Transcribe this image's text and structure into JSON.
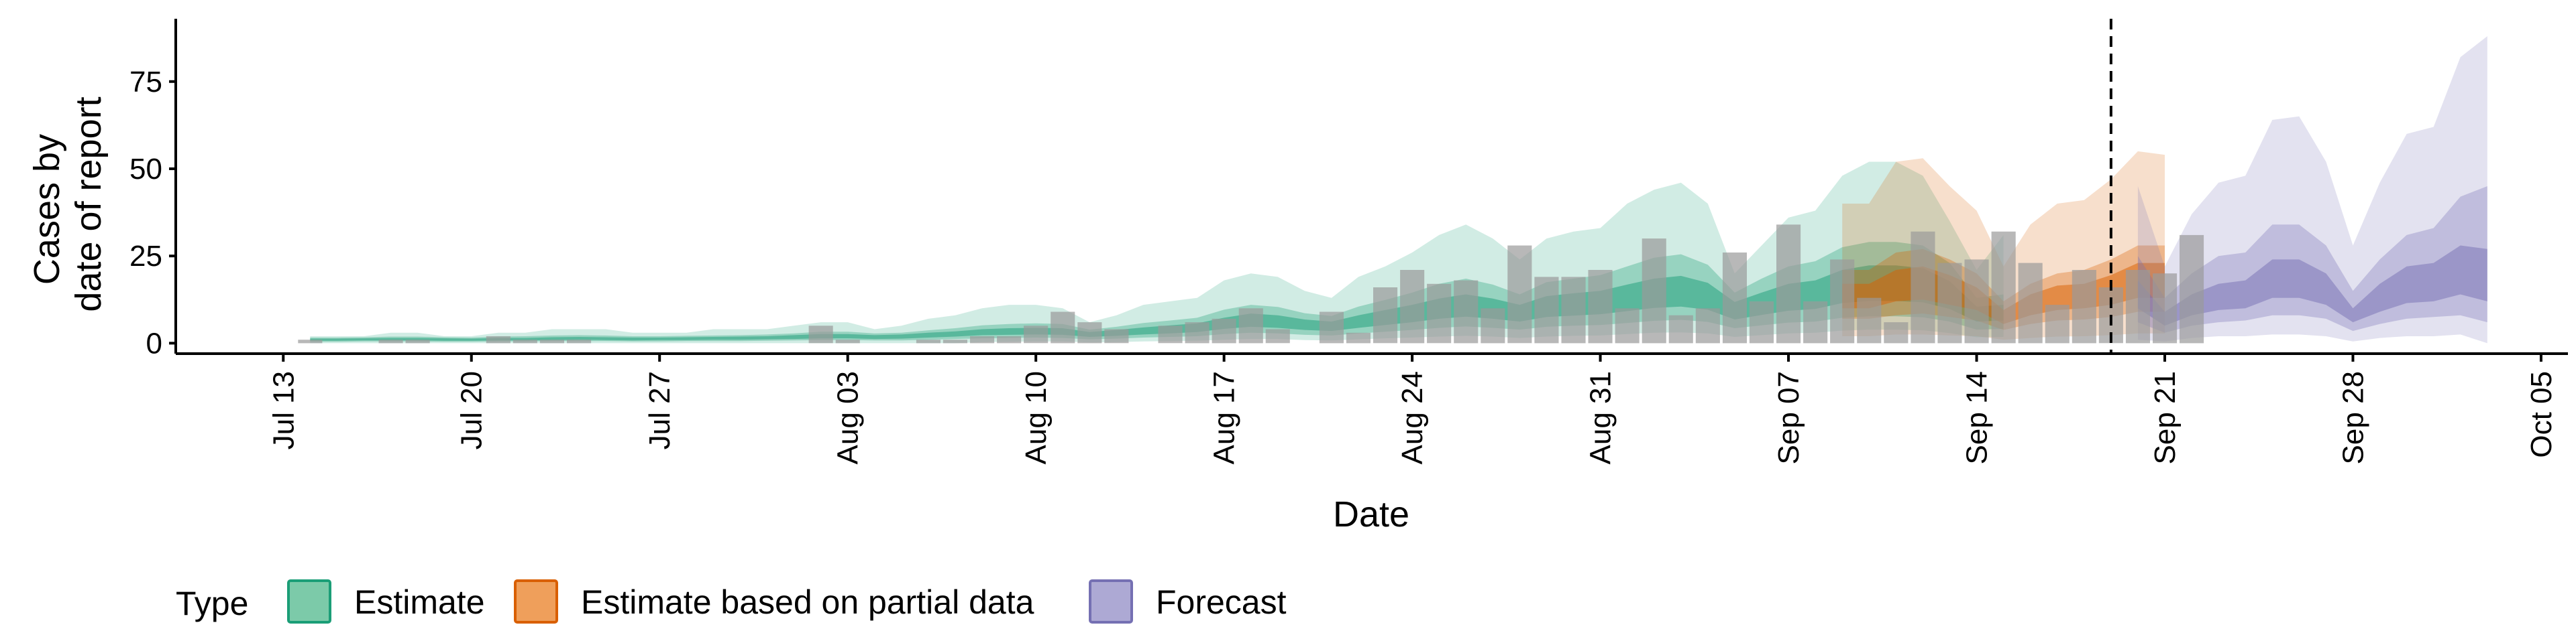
{
  "chart_data": {
    "type": "area",
    "ylabel": [
      "Cases by",
      "date of report"
    ],
    "xlabel": "Date",
    "ylim": [
      -3,
      93
    ],
    "xlim": [
      "2020-07-09",
      "2020-10-06"
    ],
    "y_ticks": [
      0,
      25,
      50,
      75
    ],
    "x_ticks": [
      {
        "date": "2020-07-13",
        "label": "Jul 13"
      },
      {
        "date": "2020-07-20",
        "label": "Jul 20"
      },
      {
        "date": "2020-07-27",
        "label": "Jul 27"
      },
      {
        "date": "2020-08-03",
        "label": "Aug 03"
      },
      {
        "date": "2020-08-10",
        "label": "Aug 10"
      },
      {
        "date": "2020-08-17",
        "label": "Aug 17"
      },
      {
        "date": "2020-08-24",
        "label": "Aug 24"
      },
      {
        "date": "2020-08-31",
        "label": "Aug 31"
      },
      {
        "date": "2020-09-07",
        "label": "Sep 07"
      },
      {
        "date": "2020-09-14",
        "label": "Sep 14"
      },
      {
        "date": "2020-09-21",
        "label": "Sep 21"
      },
      {
        "date": "2020-09-28",
        "label": "Sep 28"
      },
      {
        "date": "2020-10-05",
        "label": "Oct 05"
      }
    ],
    "forecast_date": "2020-09-19",
    "legend": {
      "title": "Type",
      "position": "bottom",
      "entries": [
        {
          "label": "Estimate",
          "fill": "#7ccaa9",
          "stroke": "#1b9e77"
        },
        {
          "label": "Estimate based on partial data",
          "fill": "#ef9f5b",
          "stroke": "#d95f02"
        },
        {
          "label": "Forecast",
          "fill": "#ada9d4",
          "stroke": "#7570b3"
        }
      ]
    },
    "colors": {
      "estimate": "#1b9e77",
      "partial": "#d95f02",
      "forecast": "#7570b3",
      "bars": "#9a9a9a"
    },
    "reported_cases": {
      "start": "2020-07-14",
      "values": [
        1,
        0,
        0,
        1,
        1,
        0,
        0,
        2,
        1,
        1,
        1,
        0,
        0,
        0,
        0,
        0,
        0,
        0,
        0,
        5,
        1,
        0,
        0,
        1,
        1,
        2,
        2,
        5,
        9,
        6,
        4,
        0,
        5,
        6,
        7,
        10,
        4,
        0,
        9,
        3,
        16,
        21,
        17,
        18,
        10,
        28,
        19,
        19,
        21,
        10,
        30,
        8,
        10,
        26,
        12,
        34,
        12,
        24,
        13,
        6,
        32,
        23,
        24,
        32,
        23,
        11,
        21,
        16,
        21,
        20,
        31
      ]
    },
    "series": [
      {
        "name": "Estimate",
        "start": "2020-07-14",
        "upper": [
          2,
          2,
          2,
          3,
          3,
          2,
          2,
          3,
          3,
          4,
          4,
          4,
          3,
          3,
          3,
          4,
          4,
          4,
          5,
          6,
          6,
          4,
          5,
          7,
          8,
          10,
          11,
          11,
          10,
          6,
          8,
          11,
          12,
          13,
          18,
          20,
          19,
          15,
          13,
          19,
          22,
          26,
          31,
          34,
          30,
          24,
          30,
          32,
          33,
          40,
          44,
          46,
          40,
          20,
          28,
          36,
          38,
          48,
          52,
          52,
          48,
          35,
          21,
          31
        ],
        "hi50": [
          1.6,
          1.6,
          1.7,
          1.9,
          1.9,
          1.7,
          1.6,
          1.9,
          2,
          2.2,
          2.3,
          2.2,
          2,
          2,
          2.1,
          2.2,
          2.3,
          2.5,
          2.8,
          3.3,
          3.3,
          2.8,
          3,
          3.7,
          4.3,
          5.1,
          5.5,
          5.7,
          5.5,
          3.9,
          4.7,
          5.8,
          6.5,
          7.3,
          9.6,
          11,
          10.4,
          8.6,
          7.8,
          10.5,
          12.4,
          14.5,
          17,
          18.5,
          16.8,
          14,
          17.5,
          18.5,
          19.5,
          22,
          24.5,
          25.5,
          22.5,
          14.5,
          18.5,
          22,
          23.5,
          27.5,
          29,
          29,
          28,
          23,
          13,
          14
        ],
        "hi20": [
          1.3,
          1.3,
          1.4,
          1.5,
          1.5,
          1.4,
          1.3,
          1.5,
          1.5,
          1.7,
          1.8,
          1.7,
          1.6,
          1.6,
          1.7,
          1.8,
          1.9,
          2,
          2.3,
          2.6,
          2.6,
          2.3,
          2.5,
          3,
          3.4,
          4,
          4.3,
          4.4,
          4.3,
          3.2,
          3.8,
          4.5,
          5.1,
          5.7,
          7.3,
          8.5,
          8,
          6.8,
          6.2,
          8,
          9.5,
          11,
          12.8,
          14,
          12.8,
          11,
          13.5,
          14.3,
          15,
          16.8,
          18.5,
          19.3,
          17.3,
          11.8,
          14.5,
          17,
          18,
          21,
          22.3,
          22.3,
          21.5,
          17.8,
          10.5,
          11
        ],
        "lo20": [
          0.7,
          0.7,
          0.8,
          0.8,
          0.8,
          0.7,
          0.7,
          0.8,
          0.8,
          0.9,
          1,
          0.9,
          0.8,
          0.9,
          0.9,
          1,
          1,
          1.1,
          1.2,
          1.4,
          1.4,
          1.2,
          1.3,
          1.6,
          1.9,
          2.3,
          2.4,
          2.5,
          2.4,
          1.8,
          2.1,
          2.5,
          2.8,
          3.2,
          4.1,
          4.7,
          4.4,
          3.8,
          3.5,
          4.4,
          5.2,
          6,
          7,
          7.6,
          7,
          6.2,
          7.5,
          7.9,
          8.3,
          9.2,
          10.1,
          10.5,
          9.6,
          6.8,
          8.1,
          9.3,
          9.8,
          11.5,
          12.1,
          12.1,
          11.7,
          9.8,
          6.2,
          6.5
        ],
        "lo50": [
          0.4,
          0.4,
          0.5,
          0.5,
          0.5,
          0.4,
          0.4,
          0.5,
          0.5,
          0.6,
          0.6,
          0.6,
          0.5,
          0.5,
          0.6,
          0.6,
          0.6,
          0.7,
          0.8,
          0.9,
          0.9,
          0.8,
          0.8,
          1,
          1.2,
          1.4,
          1.5,
          1.6,
          1.5,
          1.1,
          1.3,
          1.6,
          1.8,
          2,
          2.6,
          3,
          2.8,
          2.4,
          2.2,
          2.8,
          3.3,
          3.8,
          4.4,
          4.8,
          4.4,
          3.9,
          4.7,
          5,
          5.2,
          5.8,
          6.4,
          6.7,
          6.1,
          4.3,
          5.1,
          5.9,
          6.2,
          7.3,
          7.7,
          7.7,
          7.4,
          6.2,
          3.9,
          4.1
        ],
        "lower": [
          0,
          0,
          0,
          0,
          0,
          0,
          0,
          0,
          0,
          0,
          0,
          0,
          0,
          0,
          0,
          0,
          0,
          0,
          0,
          0,
          0,
          0,
          0,
          0,
          0,
          0.3,
          0.4,
          0.5,
          0.5,
          0.2,
          0.3,
          0.5,
          0.6,
          0.7,
          1,
          1.2,
          1.2,
          0.9,
          0.8,
          1.1,
          1.4,
          1.6,
          1.9,
          2.1,
          1.9,
          1.5,
          1.9,
          2.1,
          2.2,
          2.6,
          3,
          3.1,
          2.8,
          1.8,
          2.3,
          2.8,
          3,
          3.6,
          3.9,
          3.9,
          3.7,
          2.9,
          1.7,
          1.8
        ]
      },
      {
        "name": "Estimate based on partial data",
        "start": "2020-09-09",
        "upper": [
          40,
          40,
          52,
          53,
          45,
          38,
          22,
          34,
          40,
          41,
          47,
          55,
          54
        ],
        "hi50": [
          21,
          21,
          26,
          27,
          24,
          20,
          12,
          17,
          20,
          21,
          24,
          28,
          28
        ],
        "hi20": [
          17,
          17,
          21,
          22,
          19.5,
          16,
          9.5,
          14,
          16.5,
          17,
          19.5,
          23,
          23
        ],
        "lo20": [
          10,
          10,
          12,
          12.5,
          11,
          9.5,
          5.5,
          8,
          9.5,
          10,
          11,
          13,
          13
        ],
        "lo50": [
          7,
          7,
          8,
          8.5,
          7.5,
          6.5,
          3.8,
          5.5,
          6.5,
          6.8,
          7.5,
          9,
          9
        ],
        "lower": [
          2,
          2,
          2.5,
          2.5,
          2.2,
          2,
          1,
          1.5,
          1.9,
          2,
          2.3,
          2.8,
          2.8
        ]
      },
      {
        "name": "Forecast",
        "start": "2020-09-20",
        "upper": [
          45,
          22,
          37,
          46,
          48,
          64,
          65,
          52,
          28,
          46,
          60,
          62,
          82,
          88
        ],
        "hi50": [
          25,
          13,
          20,
          25,
          26,
          34,
          34,
          28,
          15,
          24,
          31,
          33,
          42,
          45
        ],
        "hi20": [
          18,
          9,
          14,
          17,
          18,
          24,
          24,
          20,
          10,
          17,
          22,
          23,
          28,
          27
        ],
        "lo20": [
          10,
          5,
          8,
          9.5,
          10,
          13,
          13,
          11,
          6,
          9,
          11.5,
          12,
          14,
          12
        ],
        "lo50": [
          6,
          3,
          5,
          6,
          6.5,
          8,
          8,
          7,
          3.5,
          5.5,
          7,
          7.5,
          8,
          6
        ],
        "lower": [
          1,
          0.5,
          1.5,
          2,
          2,
          2.5,
          2.5,
          2,
          0.5,
          1.5,
          2,
          2,
          2.5,
          0
        ]
      }
    ]
  }
}
